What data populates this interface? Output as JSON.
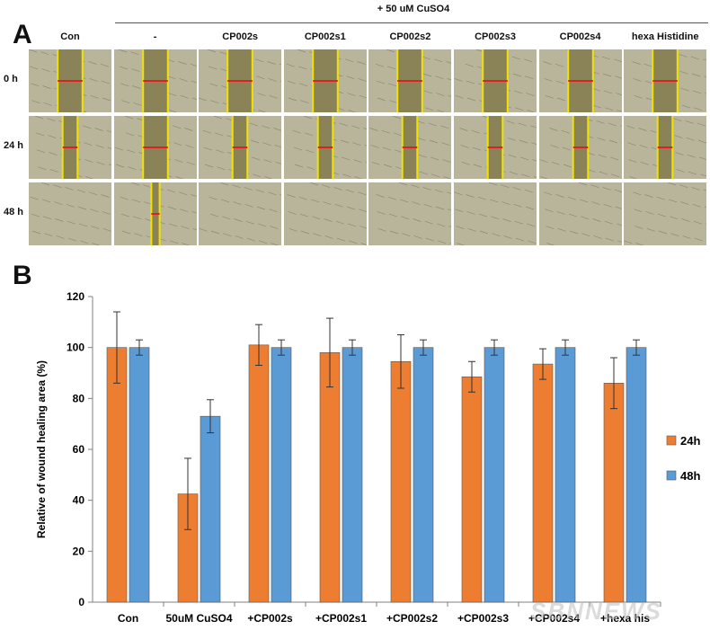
{
  "panel_a": {
    "label": "A",
    "treatment_title": "+ 50 uM CuSO4",
    "columns": [
      "Con",
      "-",
      "CP002s",
      "CP002s1",
      "CP002s2",
      "CP002s3",
      "CP002s4",
      "hexa Histidine"
    ],
    "rows": [
      "0 h",
      "24 h",
      "48 h"
    ],
    "wound_fraction_of_frame": [
      [
        0.3,
        0.3,
        0.3,
        0.3,
        0.3,
        0.3,
        0.3,
        0.3
      ],
      [
        0.18,
        0.3,
        0.18,
        0.18,
        0.18,
        0.18,
        0.18,
        0.18
      ],
      [
        0,
        0.1,
        0,
        0,
        0,
        0,
        0,
        0
      ]
    ],
    "colors": {
      "wound_line": "#f2e200",
      "measure_line": "#e02020",
      "cells": "#b9b59b",
      "gap": "#8a8358"
    }
  },
  "panel_b": {
    "label": "B"
  },
  "watermark": "SBNNEWS",
  "chart_data": {
    "type": "bar",
    "title": "",
    "ylabel": "Relative of wound healing area (%)",
    "xlabel": "",
    "ylim": [
      0,
      120
    ],
    "yticks": [
      0,
      20,
      40,
      60,
      80,
      100,
      120
    ],
    "categories": [
      "Con",
      "50uM CuSO4",
      "+CP002s",
      "+CP002s1",
      "+CP002s2",
      "+CP002s3",
      "+CP002s4",
      "+hexa his"
    ],
    "series": [
      {
        "name": "24h",
        "color": "#ed7d31",
        "values": [
          100,
          42.5,
          101,
          98,
          94.5,
          88.5,
          93.5,
          86
        ],
        "errors": [
          14,
          14,
          8,
          13.5,
          10.5,
          6,
          6,
          10
        ]
      },
      {
        "name": "48h",
        "color": "#5b9bd5",
        "values": [
          100,
          73,
          100,
          100,
          100,
          100,
          100,
          100
        ],
        "errors": [
          3,
          6.5,
          3,
          3,
          3,
          3,
          3,
          3
        ]
      }
    ],
    "legend": "right"
  }
}
